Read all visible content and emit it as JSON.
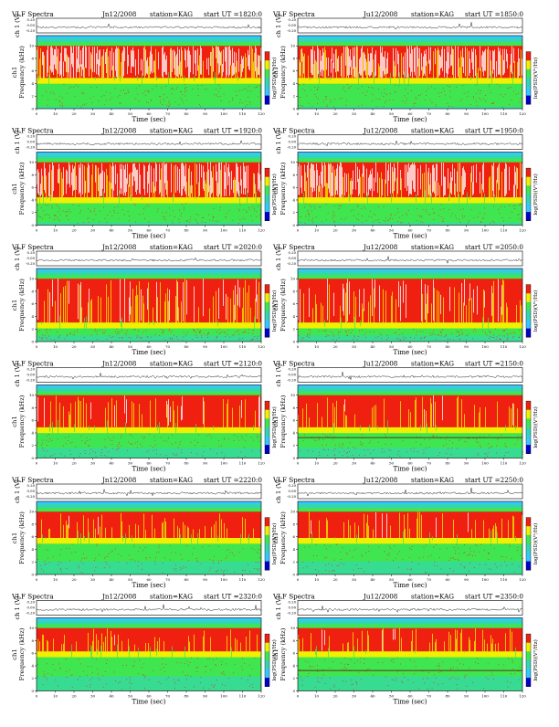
{
  "header": {
    "left": "VLF Spectra",
    "station": "station=KAG"
  },
  "colors": {
    "blue": "#0000c8",
    "cyan": "#35c8ff",
    "aqua": "#32d6b4",
    "green": "#40e650",
    "yellow": "#f0f000",
    "red": "#f02010",
    "white": "#ffffff"
  },
  "chart_data": {
    "type": "heatmap",
    "xlabel": "Time (sec)",
    "ylabel_top": "ch 1 (V)",
    "ylabel_main": "Frequency (kHz)",
    "ylabel_main_prefix": "ch1",
    "colorbar_label": "log(PSD)(V²/Hz)",
    "x_ticks": [
      0,
      10,
      20,
      30,
      40,
      50,
      60,
      70,
      80,
      90,
      100,
      110,
      120
    ],
    "xlim": [
      0,
      120
    ],
    "freq_ticks": [
      0,
      2,
      4,
      6,
      8,
      10
    ],
    "freq_lim": [
      0,
      10
    ],
    "waveform_ticks": [
      "0.20",
      "0.00",
      "-0.20"
    ],
    "panels": [
      {
        "date": "Jn12/2008",
        "start": "start UT =1820:0",
        "column": 0,
        "row": 0,
        "red_level": 0.55,
        "white_level": 0.55,
        "green_level": 0.08
      },
      {
        "date": "Ju12/2008",
        "start": "start UT =1850:0",
        "column": 1,
        "row": 0,
        "red_level": 0.55,
        "white_level": 0.55,
        "green_level": 0.08
      },
      {
        "date": "Jn12/2008",
        "start": "start UT =1920:0",
        "column": 0,
        "row": 1,
        "red_level": 0.6,
        "white_level": 0.5,
        "green_level": 0.1
      },
      {
        "date": "Ju12/2008",
        "start": "start UT =1950:0",
        "column": 1,
        "row": 1,
        "red_level": 0.6,
        "white_level": 0.45,
        "green_level": 0.1
      },
      {
        "date": "Jn12/2008",
        "start": "start UT =2020:0",
        "column": 0,
        "row": 2,
        "red_level": 0.75,
        "white_level": 0.12,
        "green_level": 0.22
      },
      {
        "date": "Ju12/2008",
        "start": "start UT =2050:0",
        "column": 1,
        "row": 2,
        "red_level": 0.75,
        "white_level": 0.1,
        "green_level": 0.22
      },
      {
        "date": "Jn12/2008",
        "start": "start UT =2120:0",
        "column": 0,
        "row": 3,
        "red_level": 0.55,
        "white_level": 0.04,
        "green_level": 0.35
      },
      {
        "date": "Ju12/2008",
        "start": "start UT =2150:0",
        "column": 1,
        "row": 3,
        "red_level": 0.55,
        "white_level": 0.04,
        "green_level": 0.35
      },
      {
        "date": "Jn12/2008",
        "start": "start UT =2220:0",
        "column": 0,
        "row": 4,
        "red_level": 0.45,
        "white_level": 0.02,
        "green_level": 0.45
      },
      {
        "date": "Ju12/2008",
        "start": "start UT =2250:0",
        "column": 1,
        "row": 4,
        "red_level": 0.45,
        "white_level": 0.02,
        "green_level": 0.45
      },
      {
        "date": "Jn12/2008",
        "start": "start UT =2320:0",
        "column": 0,
        "row": 5,
        "red_level": 0.4,
        "white_level": 0.02,
        "green_level": 0.5
      },
      {
        "date": "Ju12/2008",
        "start": "start UT =2350:0",
        "column": 1,
        "row": 5,
        "red_level": 0.4,
        "white_level": 0.02,
        "green_level": 0.5
      }
    ]
  }
}
